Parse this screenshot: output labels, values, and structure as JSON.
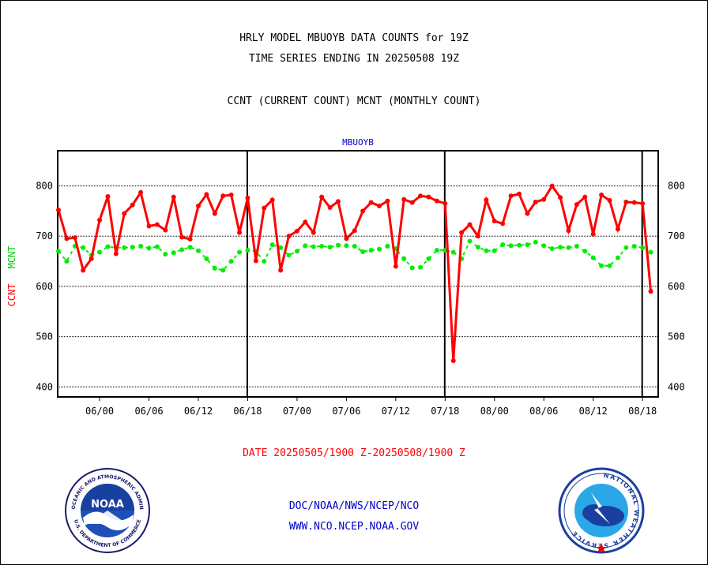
{
  "header": {
    "line1": "HRLY MODEL MBUOYB DATA COUNTS for 19Z",
    "line2": "TIME SERIES ENDING IN 20250508 19Z",
    "line3": "CCNT (CURRENT COUNT) MCNT (MONTHLY COUNT)"
  },
  "chart_data": {
    "type": "line",
    "title": "MBUOYB",
    "xlabel": "DATE 20250505/1900 Z-20250508/1900 Z",
    "ylabel_left": "CCNT",
    "ylabel_right": "MCNT",
    "ylim": [
      380,
      870
    ],
    "yticks": [
      400,
      500,
      600,
      700,
      800
    ],
    "grid": true,
    "x_tick_labels": [
      "06/00",
      "06/06",
      "06/12",
      "06/18",
      "07/00",
      "07/06",
      "07/12",
      "07/18",
      "08/00",
      "08/06",
      "08/12",
      "08/18"
    ],
    "x_tick_index": [
      5,
      11,
      17,
      23,
      29,
      35,
      41,
      47,
      53,
      59,
      65,
      71
    ],
    "day_boundary_index": [
      23,
      47,
      71
    ],
    "series": [
      {
        "name": "CCNT",
        "color": "#ff0000",
        "values": [
          752,
          695,
          697,
          632,
          655,
          732,
          779,
          665,
          745,
          762,
          787,
          720,
          723,
          712,
          778,
          698,
          694,
          760,
          783,
          745,
          780,
          782,
          707,
          776,
          651,
          756,
          772,
          632,
          700,
          710,
          728,
          707,
          778,
          757,
          769,
          695,
          711,
          750,
          767,
          760,
          770,
          640,
          773,
          767,
          780,
          778,
          770,
          765,
          452,
          707,
          723,
          700,
          772,
          730,
          725,
          780,
          784,
          745,
          768,
          773,
          800,
          777,
          711,
          763,
          778,
          704,
          782,
          771,
          714,
          768,
          767,
          765,
          590
        ]
      },
      {
        "name": "MCNT",
        "color": "#00ee00",
        "values": [
          670,
          650,
          680,
          677,
          662,
          668,
          679,
          677,
          677,
          678,
          680,
          676,
          679,
          664,
          667,
          673,
          678,
          671,
          655,
          636,
          632,
          650,
          668,
          672,
          670,
          650,
          683,
          677,
          662,
          670,
          681,
          679,
          680,
          678,
          682,
          681,
          680,
          669,
          672,
          674,
          680,
          675,
          655,
          637,
          638,
          655,
          672,
          672,
          668,
          655,
          690,
          678,
          671,
          671,
          683,
          681,
          682,
          683,
          688,
          681,
          675,
          678,
          677,
          680,
          670,
          657,
          641,
          641,
          657,
          677,
          680,
          677,
          668
        ]
      }
    ]
  },
  "footer": {
    "link1": "DOC/NOAA/NWS/NCEP/NCO",
    "link2": "WWW.NCO.NCEP.NOAA.GOV"
  },
  "noaa_logo": {
    "center_text": "NOAA",
    "ring_top": "NATIONAL OCEANIC AND ATMOSPHERIC ADMINISTRATION",
    "ring_bottom": "U.S. DEPARTMENT OF COMMERCE"
  },
  "nws_logo": {
    "ring_text": "NATIONAL WEATHER SERVICE"
  }
}
